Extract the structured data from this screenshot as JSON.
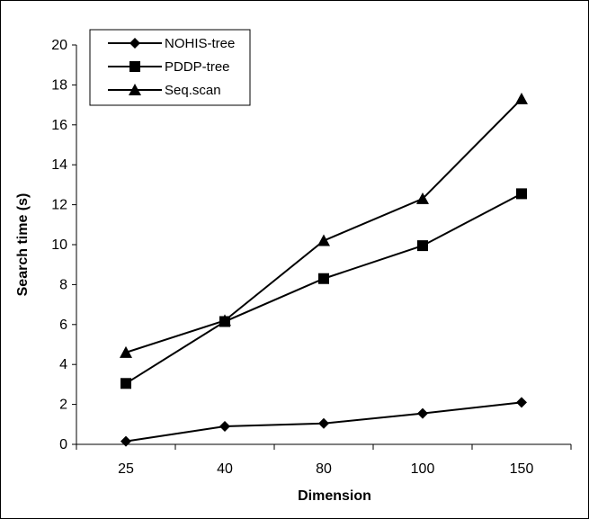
{
  "chart_data": {
    "type": "line",
    "title": "",
    "xlabel": "Dimension",
    "ylabel": "Search time (s)",
    "categories": [
      "25",
      "40",
      "80",
      "100",
      "150"
    ],
    "ylim": [
      0,
      20
    ],
    "yticks": [
      "0",
      "2",
      "4",
      "6",
      "8",
      "10",
      "12",
      "14",
      "16",
      "18",
      "20"
    ],
    "grid": false,
    "legend_position": "top-left",
    "series": [
      {
        "name": "NOHIS-tree",
        "marker": "diamond",
        "values": [
          0.15,
          0.9,
          1.05,
          1.55,
          2.1
        ]
      },
      {
        "name": "PDDP-tree",
        "marker": "square",
        "values": [
          3.05,
          6.15,
          8.3,
          9.95,
          12.55
        ]
      },
      {
        "name": "Seq.scan",
        "marker": "triangle",
        "values": [
          4.6,
          6.2,
          10.2,
          12.3,
          17.3
        ]
      }
    ]
  }
}
